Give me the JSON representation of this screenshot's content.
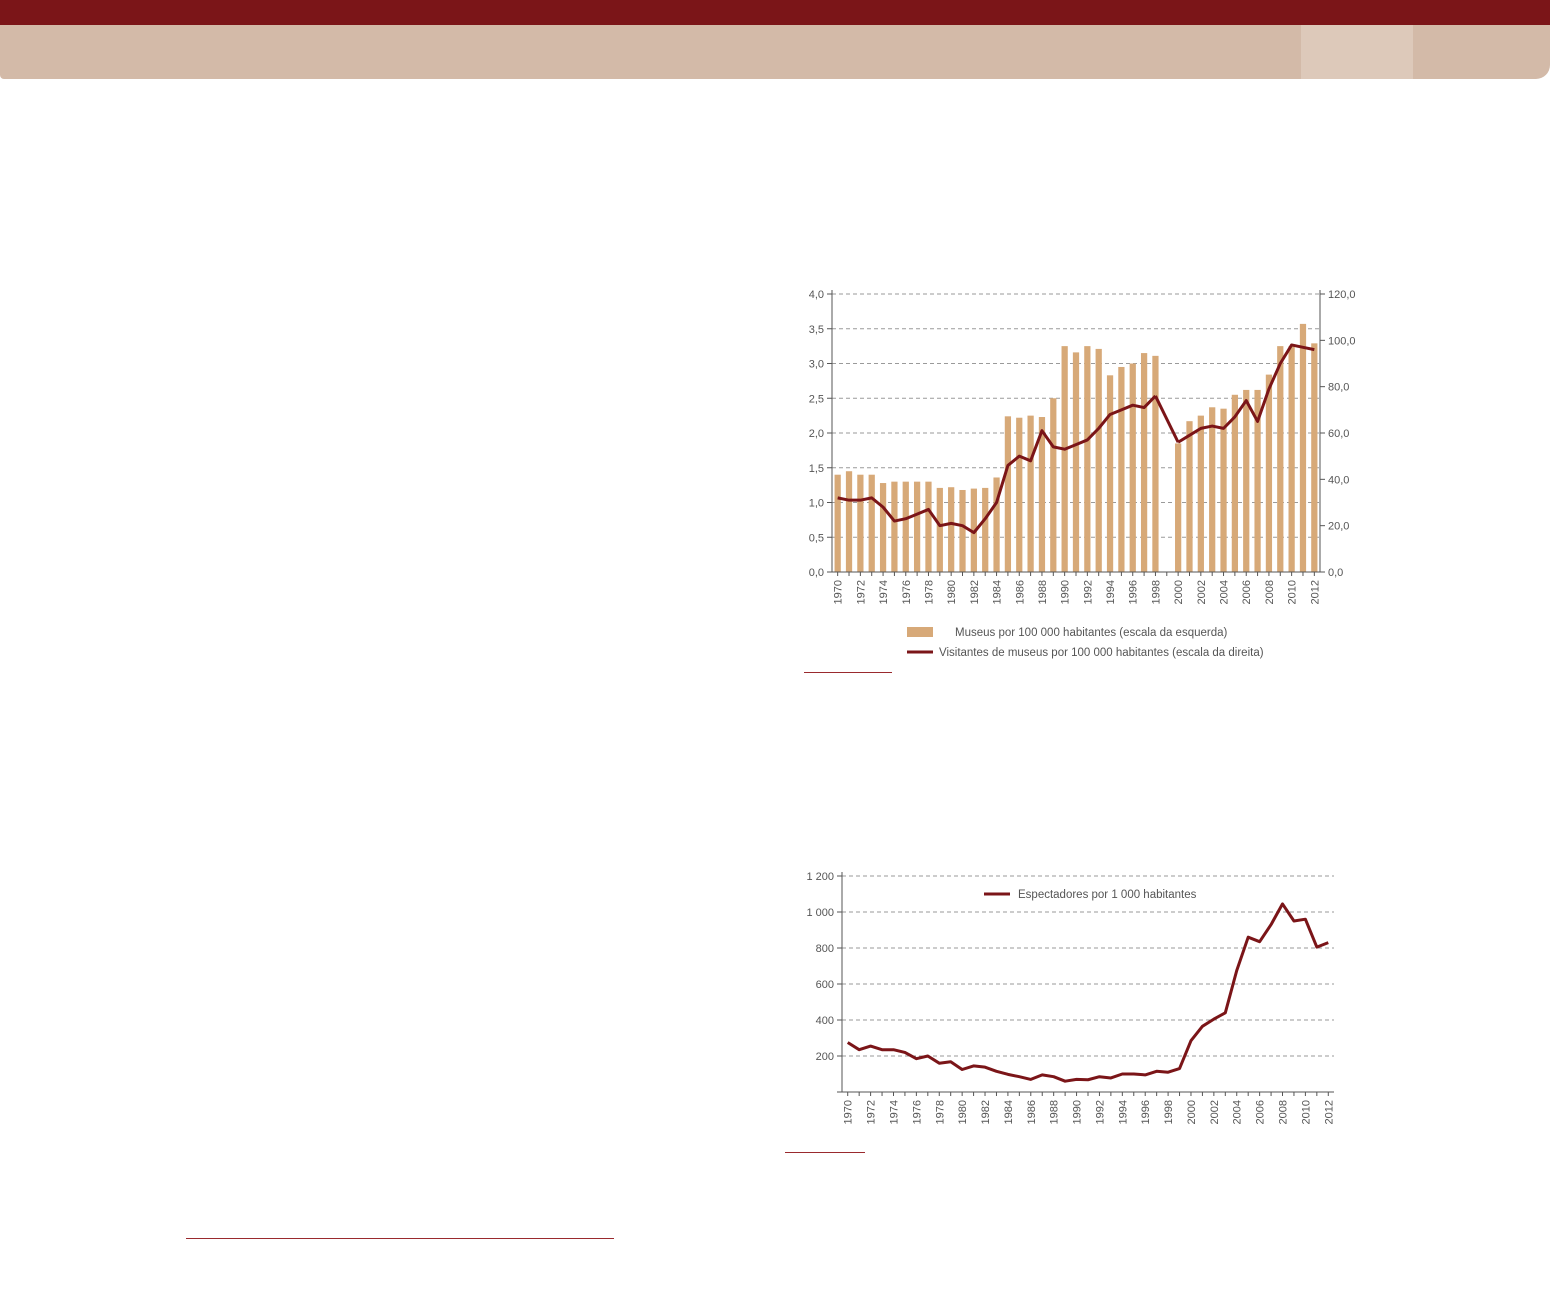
{
  "colors": {
    "header_dark": "#7b1518",
    "header_light": "#d3baa8",
    "bar_fill": "#d7a978",
    "line_stroke": "#7b1518",
    "grid": "#9a9a9a"
  },
  "chart_data": [
    {
      "type": "bar",
      "categories": [
        "1970",
        "1971",
        "1972",
        "1973",
        "1974",
        "1975",
        "1976",
        "1977",
        "1978",
        "1979",
        "1980",
        "1981",
        "1982",
        "1983",
        "1984",
        "1985",
        "1986",
        "1987",
        "1988",
        "1989",
        "1990",
        "1991",
        "1992",
        "1993",
        "1994",
        "1995",
        "1996",
        "1997",
        "1998",
        "1999",
        "2000",
        "2001",
        "2002",
        "2003",
        "2004",
        "2005",
        "2006",
        "2007",
        "2008",
        "2009",
        "2010",
        "2011",
        "2012"
      ],
      "x_tick_labels": [
        "1970",
        "1972",
        "1974",
        "1976",
        "1978",
        "1980",
        "1982",
        "1984",
        "1986",
        "1988",
        "1990",
        "1992",
        "1994",
        "1996",
        "1998",
        "2000",
        "2002",
        "2004",
        "2006",
        "2008",
        "2010",
        "2012"
      ],
      "series": [
        {
          "name": "Museus por 100 000 habitantes (escala da esquerda)",
          "kind": "bar",
          "axis": "left",
          "values": [
            1.4,
            1.45,
            1.4,
            1.4,
            1.28,
            1.3,
            1.3,
            1.3,
            1.3,
            1.21,
            1.22,
            1.18,
            1.2,
            1.21,
            1.36,
            2.24,
            2.22,
            2.25,
            2.23,
            2.5,
            3.25,
            3.16,
            3.25,
            3.21,
            2.83,
            2.95,
            3.0,
            3.15,
            3.11,
            null,
            1.85,
            2.17,
            2.25,
            2.37,
            2.35,
            2.55,
            2.62,
            2.62,
            2.84,
            3.25,
            3.25,
            3.57,
            3.29
          ]
        },
        {
          "name": "Visitantes de museus por 100 000 habitantes (escala da direita)",
          "kind": "line",
          "axis": "right",
          "values": [
            32,
            31,
            31,
            32,
            28,
            22,
            23,
            25,
            27,
            20,
            21,
            20,
            17,
            23,
            30,
            46,
            50,
            48,
            61,
            54,
            53,
            55,
            57,
            62,
            68,
            70,
            72,
            71,
            76,
            null,
            56,
            59,
            62,
            63,
            62,
            67,
            74,
            65,
            79,
            90,
            98,
            97,
            96
          ]
        }
      ],
      "y_left": {
        "min": 0,
        "max": 4,
        "ticks": [
          "0,0",
          "0,5",
          "1,0",
          "1,5",
          "2,0",
          "2,5",
          "3,0",
          "3,5",
          "4,0"
        ]
      },
      "y_right": {
        "min": 0,
        "max": 120,
        "ticks": [
          "0,0",
          "20,0",
          "40,0",
          "60,0",
          "80,0",
          "100,0",
          "120,0"
        ]
      },
      "grid": true,
      "legend_placement": "bottom"
    },
    {
      "type": "line",
      "x": [
        "1970",
        "1971",
        "1972",
        "1973",
        "1974",
        "1975",
        "1976",
        "1977",
        "1978",
        "1979",
        "1980",
        "1981",
        "1982",
        "1983",
        "1984",
        "1985",
        "1986",
        "1987",
        "1988",
        "1989",
        "1990",
        "1991",
        "1992",
        "1993",
        "1994",
        "1995",
        "1996",
        "1997",
        "1998",
        "1999",
        "2000",
        "2001",
        "2002",
        "2003",
        "2004",
        "2005",
        "2006",
        "2007",
        "2008",
        "2009",
        "2010",
        "2011",
        "2012"
      ],
      "x_tick_labels": [
        "1970",
        "1972",
        "1974",
        "1976",
        "1978",
        "1980",
        "1982",
        "1984",
        "1986",
        "1988",
        "1990",
        "1992",
        "1994",
        "1996",
        "1998",
        "2000",
        "2002",
        "2004",
        "2006",
        "2008",
        "2010",
        "2012"
      ],
      "series": [
        {
          "name": "Espectadores por 1 000 habitantes",
          "values": [
            275,
            235,
            255,
            235,
            235,
            220,
            185,
            200,
            160,
            168,
            125,
            145,
            138,
            115,
            98,
            85,
            70,
            95,
            85,
            60,
            70,
            68,
            85,
            78,
            100,
            100,
            95,
            115,
            110,
            130,
            285,
            365,
            405,
            440,
            675,
            860,
            835,
            930,
            1045,
            950,
            960,
            805,
            830
          ]
        }
      ],
      "y": {
        "min": 0,
        "max": 1200,
        "ticks": [
          "200",
          "400",
          "600",
          "800",
          "1 000",
          "1 200"
        ]
      },
      "grid": true,
      "legend_placement": "top-center"
    }
  ]
}
